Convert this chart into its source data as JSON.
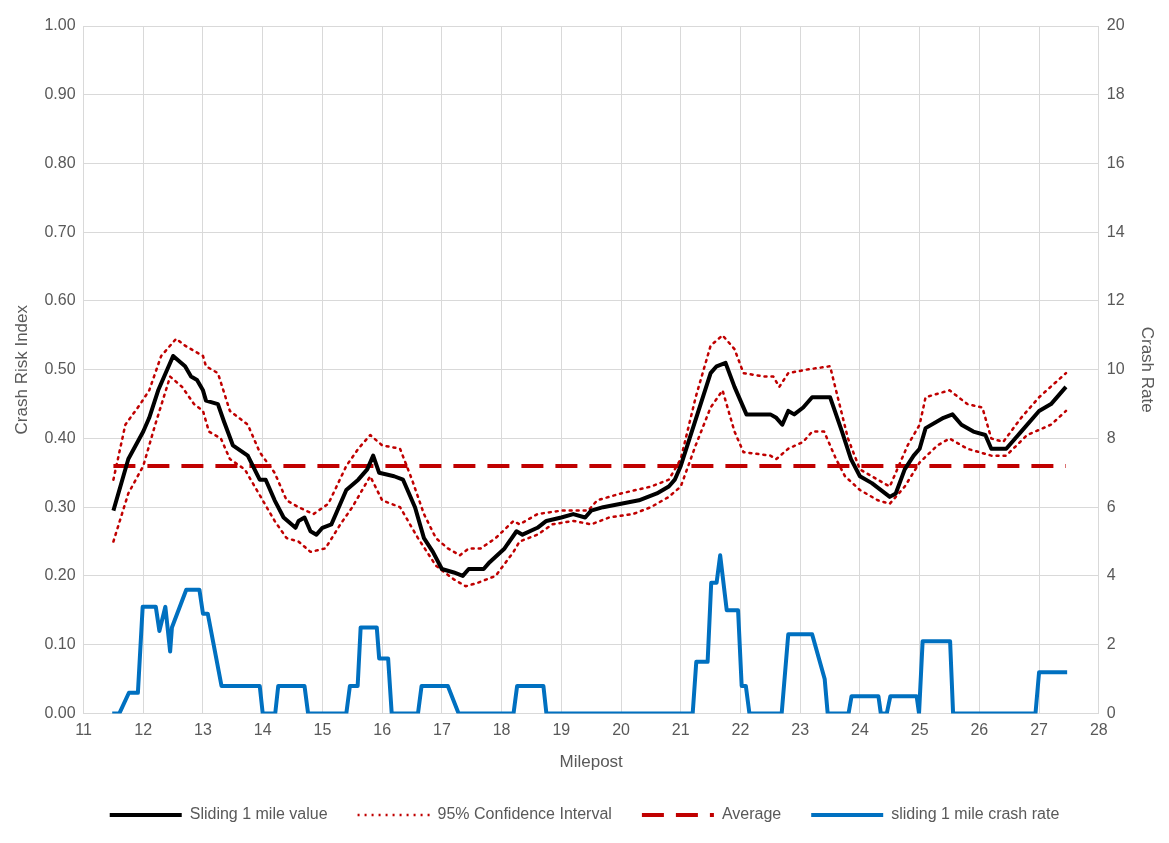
{
  "chart_data": {
    "type": "line",
    "xlabel": "Milepost",
    "ylabel": "Crash Risk Index",
    "y2label": "Crash Rate",
    "xlim": [
      11,
      28
    ],
    "xticks": [
      11,
      12,
      13,
      14,
      15,
      16,
      17,
      18,
      19,
      20,
      21,
      22,
      23,
      24,
      25,
      26,
      27,
      28
    ],
    "ylim": [
      0,
      1
    ],
    "yticks": [
      {
        "value": 0,
        "label": "0.00"
      },
      {
        "value": 0.1,
        "label": "0.10"
      },
      {
        "value": 0.2,
        "label": "0.20"
      },
      {
        "value": 0.3,
        "label": "0.30"
      },
      {
        "value": 0.4,
        "label": "0.40"
      },
      {
        "value": 0.5,
        "label": "0.50"
      },
      {
        "value": 0.6,
        "label": "0.60"
      },
      {
        "value": 0.7,
        "label": "0.70"
      },
      {
        "value": 0.8,
        "label": "0.80"
      },
      {
        "value": 0.9,
        "label": "0.90"
      },
      {
        "value": 1,
        "label": "1.00"
      }
    ],
    "y2lim": [
      0,
      20
    ],
    "y2ticks": [
      0,
      2,
      4,
      6,
      8,
      10,
      12,
      14,
      16,
      18,
      20
    ],
    "grid": true,
    "legend": "bottom",
    "marker": "none",
    "series": [
      {
        "name": "Sliding 1 mile value",
        "color": "#000000",
        "line_style": "solid",
        "x": [
          11.5,
          11.75,
          12.0,
          12.1,
          12.25,
          12.5,
          12.7,
          12.8,
          12.9,
          13.0,
          13.05,
          13.25,
          13.35,
          13.5,
          13.75,
          13.95,
          14.05,
          14.2,
          14.35,
          14.55,
          14.6,
          14.7,
          14.8,
          14.9,
          15.0,
          15.15,
          15.4,
          15.6,
          15.75,
          15.85,
          15.95,
          16.2,
          16.35,
          16.55,
          16.7,
          16.85,
          17.0,
          17.2,
          17.35,
          17.45,
          17.7,
          17.8,
          18.05,
          18.25,
          18.35,
          18.6,
          18.75,
          19.0,
          19.2,
          19.4,
          19.5,
          19.7,
          20.0,
          20.3,
          20.6,
          20.8,
          20.9,
          21.0,
          21.5,
          21.6,
          21.75,
          21.9,
          22.1,
          22.5,
          22.6,
          22.7,
          22.8,
          22.9,
          23.05,
          23.2,
          23.5,
          23.7,
          23.85,
          24.0,
          24.2,
          24.5,
          24.6,
          24.75,
          24.9,
          25.0,
          25.1,
          25.4,
          25.55,
          25.7,
          25.9,
          26.1,
          26.2,
          26.45,
          26.7,
          27.0,
          27.2,
          27.45
        ],
        "values": [
          0.295,
          0.37,
          0.41,
          0.43,
          0.47,
          0.52,
          0.505,
          0.49,
          0.485,
          0.47,
          0.455,
          0.45,
          0.425,
          0.39,
          0.375,
          0.34,
          0.34,
          0.31,
          0.285,
          0.27,
          0.28,
          0.285,
          0.265,
          0.26,
          0.27,
          0.275,
          0.325,
          0.34,
          0.355,
          0.375,
          0.35,
          0.345,
          0.34,
          0.3,
          0.255,
          0.235,
          0.21,
          0.205,
          0.2,
          0.21,
          0.21,
          0.22,
          0.24,
          0.265,
          0.26,
          0.27,
          0.28,
          0.285,
          0.29,
          0.285,
          0.295,
          0.3,
          0.305,
          0.31,
          0.32,
          0.33,
          0.34,
          0.36,
          0.495,
          0.505,
          0.51,
          0.475,
          0.435,
          0.435,
          0.43,
          0.42,
          0.44,
          0.435,
          0.445,
          0.46,
          0.46,
          0.41,
          0.37,
          0.345,
          0.335,
          0.315,
          0.32,
          0.355,
          0.375,
          0.385,
          0.415,
          0.43,
          0.435,
          0.42,
          0.41,
          0.405,
          0.385,
          0.385,
          0.41,
          0.44,
          0.45,
          0.475
        ]
      },
      {
        "name": "95% Confidence Interval",
        "color": "#c00000",
        "line_style": "dotted",
        "x": [
          11.5,
          11.7,
          11.95,
          12.1,
          12.3,
          12.55,
          12.7,
          13.0,
          13.05,
          13.25,
          13.45,
          13.75,
          13.95,
          14.2,
          14.4,
          14.6,
          14.85,
          15.1,
          15.4,
          15.6,
          15.8,
          16.0,
          16.3,
          16.5,
          16.7,
          16.9,
          17.1,
          17.3,
          17.45,
          17.65,
          17.9,
          18.2,
          18.3,
          18.6,
          19.0,
          19.45,
          19.6,
          20.0,
          20.5,
          20.8,
          21.0,
          21.25,
          21.5,
          21.7,
          21.9,
          22.05,
          22.4,
          22.55,
          22.65,
          22.8,
          23.1,
          23.5,
          23.6,
          23.8,
          24.0,
          24.3,
          24.5,
          24.8,
          25.0,
          25.1,
          25.5,
          25.8,
          26.05,
          26.2,
          26.4,
          26.7,
          27.0,
          27.45
        ],
        "values": [
          0.34,
          0.42,
          0.45,
          0.47,
          0.52,
          0.545,
          0.535,
          0.52,
          0.505,
          0.495,
          0.44,
          0.42,
          0.38,
          0.35,
          0.31,
          0.3,
          0.29,
          0.305,
          0.36,
          0.385,
          0.405,
          0.39,
          0.385,
          0.34,
          0.29,
          0.255,
          0.24,
          0.23,
          0.24,
          0.24,
          0.255,
          0.28,
          0.275,
          0.29,
          0.295,
          0.295,
          0.31,
          0.32,
          0.33,
          0.34,
          0.37,
          0.46,
          0.535,
          0.55,
          0.53,
          0.495,
          0.49,
          0.49,
          0.475,
          0.495,
          0.5,
          0.505,
          0.47,
          0.4,
          0.355,
          0.34,
          0.33,
          0.39,
          0.42,
          0.46,
          0.47,
          0.45,
          0.445,
          0.4,
          0.395,
          0.43,
          0.46,
          0.495
        ]
      },
      {
        "color": "#c00000",
        "line_style": "dotted",
        "x": [
          11.5,
          11.75,
          12.0,
          12.2,
          12.45,
          12.65,
          12.85,
          13.0,
          13.1,
          13.3,
          13.45,
          13.7,
          14.0,
          14.2,
          14.4,
          14.6,
          14.8,
          15.05,
          15.3,
          15.5,
          15.8,
          16.0,
          16.3,
          16.6,
          16.9,
          17.2,
          17.4,
          17.6,
          17.9,
          18.2,
          18.3,
          18.6,
          18.85,
          19.2,
          19.5,
          19.8,
          20.2,
          20.5,
          20.8,
          21.0,
          21.25,
          21.5,
          21.7,
          21.9,
          22.05,
          22.5,
          22.6,
          22.8,
          23.05,
          23.2,
          23.4,
          23.6,
          23.75,
          24.0,
          24.3,
          24.5,
          24.75,
          25.0,
          25.3,
          25.5,
          25.8,
          26.0,
          26.2,
          26.45,
          26.8,
          27.2,
          27.45
        ],
        "values": [
          0.25,
          0.32,
          0.36,
          0.42,
          0.49,
          0.475,
          0.45,
          0.44,
          0.41,
          0.4,
          0.37,
          0.355,
          0.31,
          0.28,
          0.255,
          0.25,
          0.235,
          0.24,
          0.275,
          0.3,
          0.345,
          0.31,
          0.3,
          0.255,
          0.215,
          0.195,
          0.185,
          0.19,
          0.2,
          0.235,
          0.25,
          0.26,
          0.275,
          0.28,
          0.275,
          0.285,
          0.29,
          0.3,
          0.315,
          0.33,
          0.39,
          0.445,
          0.47,
          0.41,
          0.38,
          0.375,
          0.37,
          0.385,
          0.395,
          0.41,
          0.41,
          0.37,
          0.345,
          0.325,
          0.31,
          0.305,
          0.33,
          0.365,
          0.39,
          0.4,
          0.385,
          0.38,
          0.375,
          0.375,
          0.405,
          0.42,
          0.44
        ]
      },
      {
        "name": "Average",
        "color": "#c00000",
        "line_style": "dashed",
        "x": [
          11.5,
          27.45
        ],
        "values": [
          0.36,
          0.36
        ]
      },
      {
        "name": "sliding 1 mile crash rate",
        "color": "#0070c0",
        "line_style": "solid",
        "axis": "y2",
        "x": [
          11.48,
          11.6,
          11.76,
          11.91,
          11.99,
          12.21,
          12.27,
          12.37,
          12.45,
          12.48,
          12.72,
          12.94,
          13.0,
          13.08,
          13.31,
          13.95,
          14.0,
          14.21,
          14.26,
          14.7,
          14.76,
          15.4,
          15.46,
          15.59,
          15.64,
          15.91,
          15.95,
          16.1,
          16.16,
          16.6,
          16.66,
          17.1,
          17.28,
          18.2,
          18.26,
          18.7,
          18.75,
          21.2,
          21.26,
          21.45,
          21.51,
          21.6,
          21.66,
          21.77,
          21.96,
          22.02,
          22.09,
          22.15,
          22.69,
          22.8,
          23.2,
          23.41,
          23.46,
          23.81,
          23.86,
          24.31,
          24.35,
          24.45,
          24.51,
          24.95,
          24.99,
          25.05,
          25.51,
          25.56,
          26.94,
          27.0,
          27.47
        ],
        "values": [
          0,
          0,
          0.6,
          0.6,
          3.1,
          3.1,
          2.4,
          3.1,
          1.8,
          2.5,
          3.6,
          3.6,
          2.9,
          2.9,
          0.8,
          0.8,
          0,
          0,
          0.8,
          0.8,
          0,
          0,
          0.8,
          0.8,
          2.5,
          2.5,
          1.6,
          1.6,
          0,
          0,
          0.8,
          0.8,
          0,
          0,
          0.8,
          0.8,
          0,
          0,
          1.5,
          1.5,
          3.8,
          3.8,
          4.6,
          3.0,
          3.0,
          0.8,
          0.8,
          0,
          0,
          2.3,
          2.3,
          1.0,
          0,
          0,
          0.5,
          0.5,
          0,
          0,
          0.5,
          0.5,
          0,
          2.1,
          2.1,
          0,
          0,
          1.2,
          1.2
        ]
      }
    ]
  }
}
